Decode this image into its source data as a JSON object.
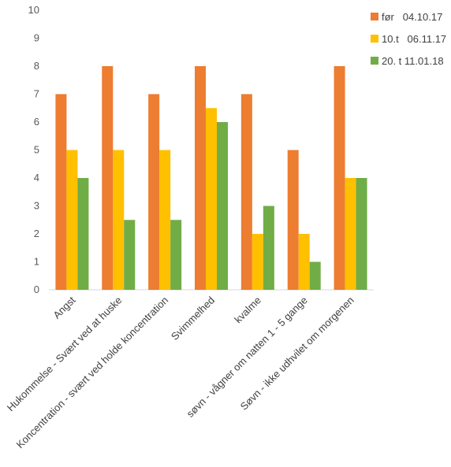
{
  "chart_data": {
    "type": "bar",
    "categories": [
      "Angst",
      "Hukommelse - Svært ved at huske",
      "Koncentration - svært ved holde koncentration",
      "Svimmelhed",
      "kvalme",
      "søvn - vågner om natten 1 - 5 gange",
      "Søvn - ikke udhvilet om morgenen"
    ],
    "series": [
      {
        "name": "før   04.10.17",
        "color": "#ED7D31",
        "values": [
          7,
          8,
          7,
          8,
          7,
          5,
          8
        ]
      },
      {
        "name": "10.t   06.11.17",
        "color": "#FFC000",
        "values": [
          5,
          5,
          5,
          6.5,
          2,
          2,
          4
        ]
      },
      {
        "name": "20. t 11.01.18",
        "color": "#70AD47",
        "values": [
          4,
          2.5,
          2.5,
          6,
          3,
          1,
          4
        ]
      }
    ],
    "ylim": [
      0,
      10
    ],
    "yticks": [
      0,
      1,
      2,
      3,
      4,
      5,
      6,
      7,
      8,
      9,
      10
    ],
    "grid": false,
    "legend_position": "top-right",
    "title": "",
    "xlabel": "",
    "ylabel": ""
  }
}
